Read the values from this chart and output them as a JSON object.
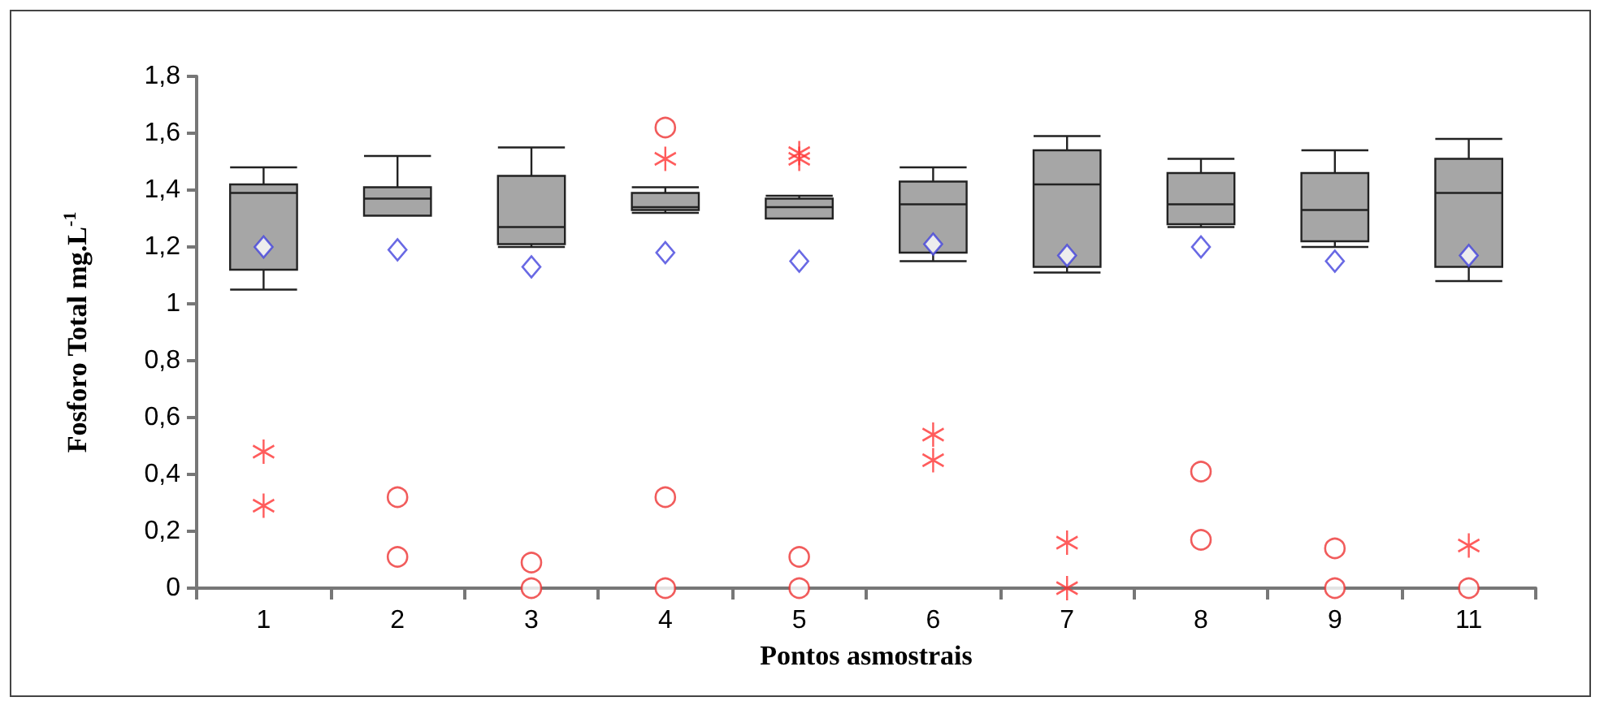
{
  "chart_data": {
    "type": "box",
    "xlabel": "Pontos asmostrais",
    "ylabel": "Fosforo Total mg.L$^{-1}$",
    "categories": [
      "1",
      "2",
      "3",
      "4",
      "5",
      "6",
      "7",
      "8",
      "9",
      "11"
    ],
    "ylim": [
      0,
      1.8
    ],
    "yticks": [
      0,
      {
        "value": 0.2,
        "label": "0,2"
      },
      {
        "value": 0.4,
        "label": "0,4"
      },
      {
        "value": 0.6,
        "label": "0,6"
      },
      {
        "value": 0.8,
        "label": "0,8"
      },
      1,
      {
        "value": 1.2,
        "label": "1,2"
      },
      {
        "value": 1.4,
        "label": "1,4"
      },
      {
        "value": 1.6,
        "label": "1,6"
      },
      {
        "value": 1.8,
        "label": "1,8"
      }
    ],
    "grid": false,
    "series": [
      {
        "type": "box",
        "color": "#a6a6a6",
        "boxes": [
          {
            "low": 1.05,
            "q1": 1.12,
            "median": 1.39,
            "q3": 1.42,
            "high": 1.48,
            "mean": 1.2
          },
          {
            "low": 1.31,
            "q1": 1.31,
            "median": 1.37,
            "q3": 1.41,
            "high": 1.52,
            "mean": 1.19,
            "outliers": [
              0.32,
              0.11
            ]
          },
          {
            "low": 1.2,
            "q1": 1.21,
            "median": 1.27,
            "q3": 1.45,
            "high": 1.55,
            "mean": 1.13,
            "outliers": [
              0.09,
              0
            ]
          },
          {
            "low": 1.32,
            "q1": 1.33,
            "median": 1.34,
            "q3": 1.39,
            "high": 1.41,
            "mean": 1.18,
            "outliers": [
              1.62,
              0.32,
              0
            ]
          },
          {
            "low": 1.3,
            "q1": 1.3,
            "median": 1.34,
            "q3": 1.37,
            "high": 1.38,
            "mean": 1.15,
            "outliers": [
              0.11,
              0
            ]
          },
          {
            "low": 1.15,
            "q1": 1.18,
            "median": 1.35,
            "q3": 1.43,
            "high": 1.48,
            "mean": 1.21
          },
          {
            "low": 1.11,
            "q1": 1.13,
            "median": 1.42,
            "q3": 1.54,
            "high": 1.59,
            "mean": 1.17
          },
          {
            "low": 1.27,
            "q1": 1.28,
            "median": 1.35,
            "q3": 1.46,
            "high": 1.51,
            "mean": 1.2,
            "outliers": [
              0.41,
              0.17
            ]
          },
          {
            "low": 1.2,
            "q1": 1.22,
            "median": 1.33,
            "q3": 1.46,
            "high": 1.54,
            "mean": 1.15,
            "outliers": [
              0.14,
              0
            ]
          },
          {
            "low": 1.08,
            "q1": 1.13,
            "median": 1.39,
            "q3": 1.51,
            "high": 1.58,
            "mean": 1.17,
            "outliers": [
              0
            ]
          }
        ]
      },
      {
        "type": "scatter",
        "color": "#ff3333",
        "marker": "cross",
        "x": [
          "1",
          "1",
          "4",
          "5",
          "5",
          "6",
          "6",
          "7",
          "7",
          "11"
        ],
        "values": [
          0.48,
          0.29,
          1.51,
          1.53,
          1.51,
          0.54,
          0.45,
          0.16,
          0,
          0.15
        ]
      }
    ]
  }
}
